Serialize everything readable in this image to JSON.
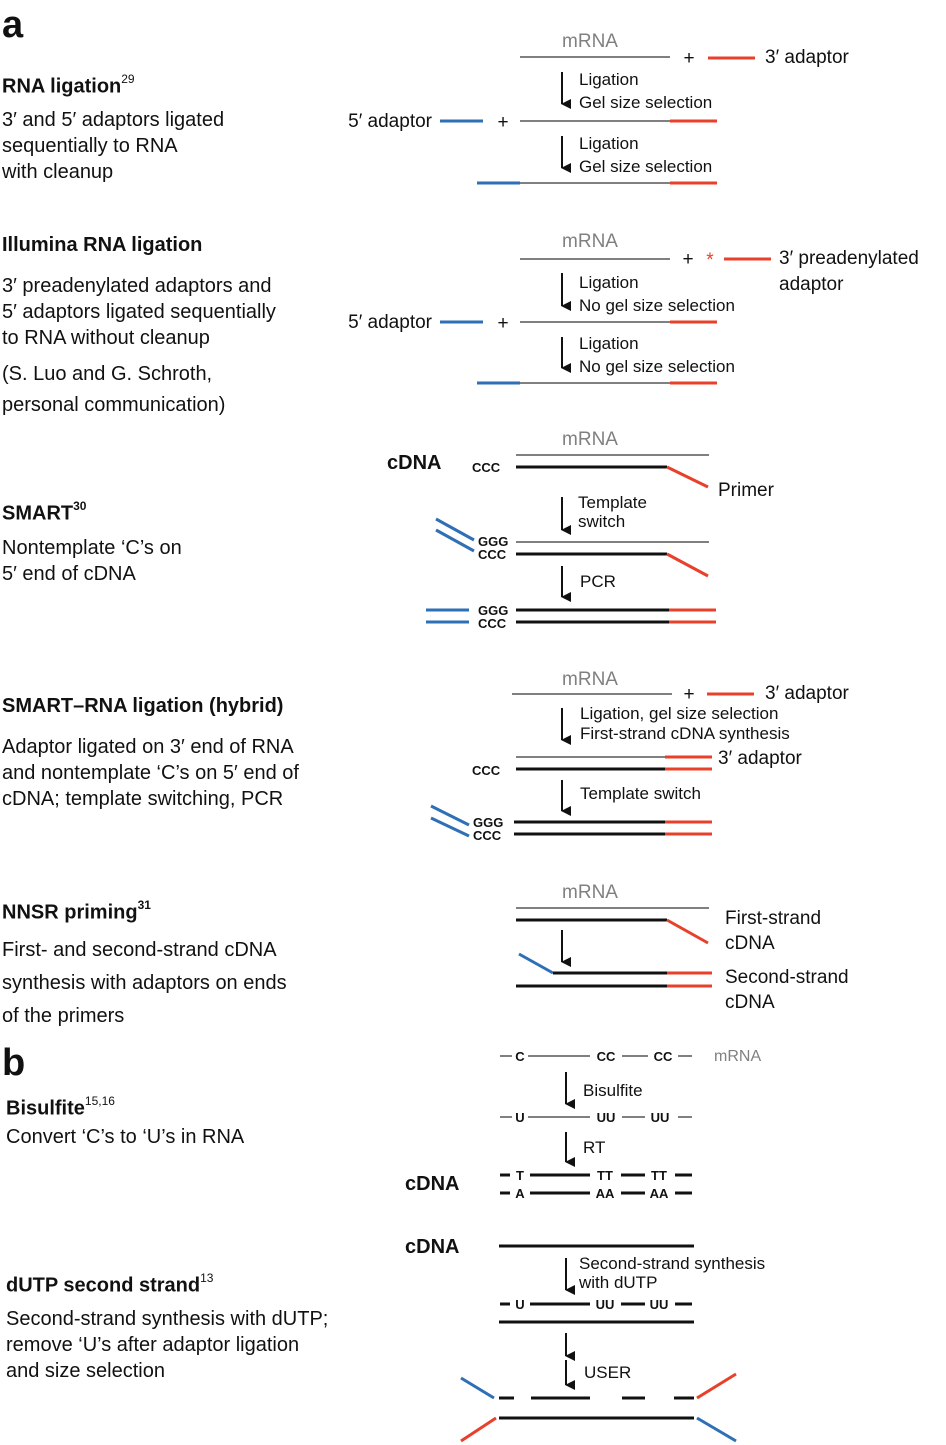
{
  "panels": [
    {
      "label": "a"
    },
    {
      "label": "b"
    }
  ],
  "methods": [
    {
      "title": "RNA ligation",
      "ref": "29",
      "description": "3′ and 5′ adaptors ligated\nsequentially to RNA\nwith cleanup"
    },
    {
      "title": "Illumina RNA ligation",
      "ref": "",
      "description": "3′ preadenylated adaptors and\n5′ adaptors ligated sequentially\nto RNA without cleanup",
      "note": "(S. Luo and G. Schroth,\npersonal communication)"
    },
    {
      "title": "SMART",
      "ref": "30",
      "description": "Nontemplate ‘C’s on\n5′ end of cDNA"
    },
    {
      "title": "SMART–RNA ligation (hybrid)",
      "ref": "",
      "description": "Adaptor ligated on 3′ end of RNA\nand nontemplate ‘C’s on 5′ end of\ncDNA; template switching, PCR"
    },
    {
      "title": "NNSR priming",
      "ref": "31",
      "description": "First- and second-strand cDNA\nsynthesis with adaptors on ends\nof the primers"
    },
    {
      "title": "Bisulfite",
      "ref": "15,16",
      "description": "Convert ‘C’s to ‘U’s in RNA"
    },
    {
      "title": "dUTP second strand",
      "ref": "13",
      "description": "Second-strand synthesis with dUTP;\nremove ‘U’s after adaptor ligation\nand size selection"
    }
  ],
  "diagram_labels": {
    "mrna": "mRNA",
    "cdna": "cDNA",
    "adaptor_3": "3′ adaptor",
    "adaptor_5": "5′ adaptor",
    "preadenylated_3_line1": "3′ preadenylated",
    "preadenylated_3_line2": "adaptor",
    "star": "*",
    "plus": "+",
    "primer": "Primer",
    "first_strand_l1": "First-strand",
    "first_strand_l2": "cDNA",
    "second_strand_l1": "Second-strand",
    "second_strand_l2": "cDNA"
  },
  "steps": {
    "ligation": "Ligation",
    "gel_size_selection": "Gel size selection",
    "no_gel_size_selection": "No gel size selection",
    "template_switch_l1": "Template",
    "template_switch_l2": "switch",
    "pcr": "PCR",
    "lig_gel": "Ligation, gel size selection",
    "first_strand_synth": "First-strand cDNA synthesis",
    "template_switch": "Template switch",
    "bisulfite": "Bisulfite",
    "rt": "RT",
    "second_strand_l1": "Second-strand synthesis",
    "second_strand_l2": "with dUTP",
    "user": "USER"
  },
  "bases": {
    "ccc": "CCC",
    "ggg": "GGG",
    "c": "C",
    "cc": "CC",
    "u": "U",
    "uu": "UU",
    "t": "T",
    "tt": "TT",
    "a": "A",
    "aa": "AA"
  },
  "colors": {
    "adaptor_3": "#e8402a",
    "adaptor_5": "#2e6fb6",
    "rna": "#808080",
    "dna": "#111111"
  }
}
